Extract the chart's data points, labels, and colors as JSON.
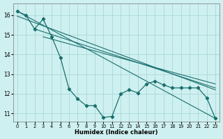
{
  "xlabel": "Humidex (Indice chaleur)",
  "xlim": [
    -0.5,
    23.5
  ],
  "ylim": [
    10.6,
    16.6
  ],
  "yticks": [
    11,
    12,
    13,
    14,
    15,
    16
  ],
  "xticks": [
    0,
    1,
    2,
    3,
    4,
    5,
    6,
    7,
    8,
    9,
    10,
    11,
    12,
    13,
    14,
    15,
    16,
    17,
    18,
    19,
    20,
    21,
    22,
    23
  ],
  "background_color": "#cff0f0",
  "grid_color": "#a8d8d8",
  "line_color": "#1a6e6e",
  "main_x": [
    0,
    1,
    2,
    3,
    4,
    5,
    6,
    7,
    8,
    9,
    10,
    11,
    12,
    13,
    14,
    15,
    16,
    17,
    18,
    19,
    20,
    21,
    22,
    23
  ],
  "main_y": [
    16.2,
    16.0,
    15.3,
    15.8,
    14.9,
    13.85,
    12.25,
    11.75,
    11.4,
    11.4,
    10.8,
    10.85,
    12.0,
    12.2,
    12.05,
    12.5,
    12.65,
    12.45,
    12.3,
    12.3,
    12.3,
    12.3,
    11.8,
    10.75
  ],
  "trend1_x": [
    0,
    23
  ],
  "trend1_y": [
    16.2,
    10.75
  ],
  "trend2_x": [
    0,
    23
  ],
  "trend2_y": [
    15.95,
    12.2
  ],
  "trend3_x": [
    2,
    23
  ],
  "trend3_y": [
    15.3,
    12.3
  ],
  "trend4_x": [
    3,
    23
  ],
  "trend4_y": [
    14.9,
    12.5
  ]
}
